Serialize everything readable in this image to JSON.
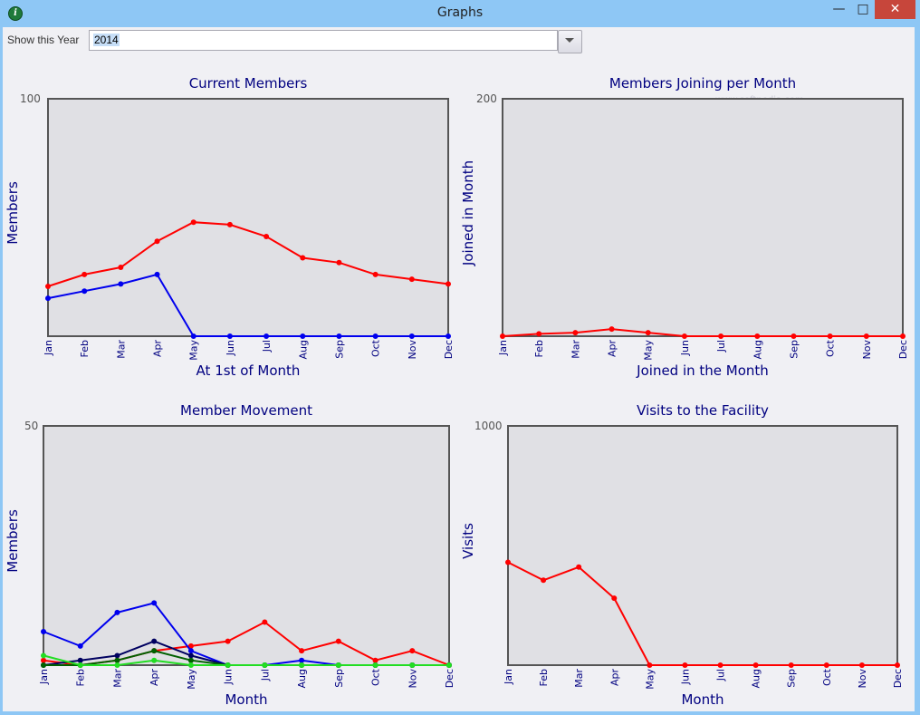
{
  "window": {
    "title": "Graphs",
    "min_glyph": "—",
    "max_glyph": "□",
    "close_glyph": "✕",
    "icon": "app-info-icon"
  },
  "toolbar": {
    "year_label": "Show this Year",
    "year_value": "2014",
    "dropdown_icon": "chevron-down-icon"
  },
  "watermark": "www.softpedia.com",
  "colors": {
    "plot_bg": "#e0e0e4",
    "frame": "#555555",
    "red": "#ff0000",
    "blue": "#0000ee",
    "navy": "#000060",
    "darkgreen": "#006000",
    "lime": "#22dd22"
  },
  "chart_data": [
    {
      "type": "line",
      "title": "Current Members",
      "xlabel": "At 1st of Month",
      "ylabel": "Members",
      "ylim": [
        0,
        100
      ],
      "ymax_label": "100",
      "categories": [
        "Jan",
        "Feb",
        "Mar",
        "Apr",
        "May",
        "Jun",
        "Jul",
        "Aug",
        "Sep",
        "Oct",
        "Nov",
        "Dec"
      ],
      "series": [
        {
          "color": "#ff0000",
          "values": [
            21,
            26,
            29,
            40,
            48,
            47,
            42,
            33,
            31,
            26,
            24,
            22
          ]
        },
        {
          "color": "#0000ee",
          "values": [
            16,
            19,
            22,
            26,
            0,
            0,
            0,
            0,
            0,
            0,
            0,
            0
          ]
        }
      ]
    },
    {
      "type": "line",
      "title": "Members Joining per Month",
      "xlabel": "Joined in the Month",
      "ylabel": "Joined in Month",
      "ylim": [
        0,
        200
      ],
      "ymax_label": "200",
      "categories": [
        "Jan",
        "Feb",
        "Mar",
        "Apr",
        "May",
        "Jun",
        "Jul",
        "Aug",
        "Sep",
        "Oct",
        "Nov",
        "Dec"
      ],
      "series": [
        {
          "color": "#ff0000",
          "values": [
            0,
            2,
            3,
            6,
            3,
            0,
            0,
            0,
            0,
            0,
            0,
            0
          ]
        }
      ]
    },
    {
      "type": "line",
      "title": "Member Movement",
      "xlabel": "Month",
      "ylabel": "Members",
      "ylim": [
        0,
        50
      ],
      "ymax_label": "50",
      "categories": [
        "Jan",
        "Feb",
        "Mar",
        "Apr",
        "May",
        "Jun",
        "Jul",
        "Aug",
        "Sep",
        "Oct",
        "Nov",
        "Dec"
      ],
      "series": [
        {
          "color": "#ff0000",
          "values": [
            1,
            0,
            1,
            3,
            4,
            5,
            9,
            3,
            5,
            1,
            3,
            0
          ]
        },
        {
          "color": "#0000ee",
          "values": [
            7,
            4,
            11,
            13,
            3,
            0,
            0,
            1,
            0,
            0,
            0,
            0
          ]
        },
        {
          "color": "#000060",
          "values": [
            0,
            1,
            2,
            5,
            2,
            0,
            0,
            0,
            0,
            0,
            0,
            0
          ]
        },
        {
          "color": "#006000",
          "values": [
            0,
            0,
            1,
            3,
            1,
            0,
            0,
            0,
            0,
            0,
            0,
            0
          ]
        },
        {
          "color": "#22dd22",
          "values": [
            2,
            0,
            0,
            1,
            0,
            0,
            0,
            0,
            0,
            0,
            0,
            0
          ]
        }
      ]
    },
    {
      "type": "line",
      "title": "Visits to the Facility",
      "xlabel": "Month",
      "ylabel": "Visits",
      "ylim": [
        0,
        1000
      ],
      "ymax_label": "1000",
      "categories": [
        "Jan",
        "Feb",
        "Mar",
        "Apr",
        "May",
        "Jun",
        "Jul",
        "Aug",
        "Sep",
        "Oct",
        "Nov",
        "Dec"
      ],
      "series": [
        {
          "color": "#ff0000",
          "values": [
            430,
            355,
            410,
            280,
            0,
            0,
            0,
            0,
            0,
            0,
            0,
            0
          ]
        }
      ]
    }
  ]
}
